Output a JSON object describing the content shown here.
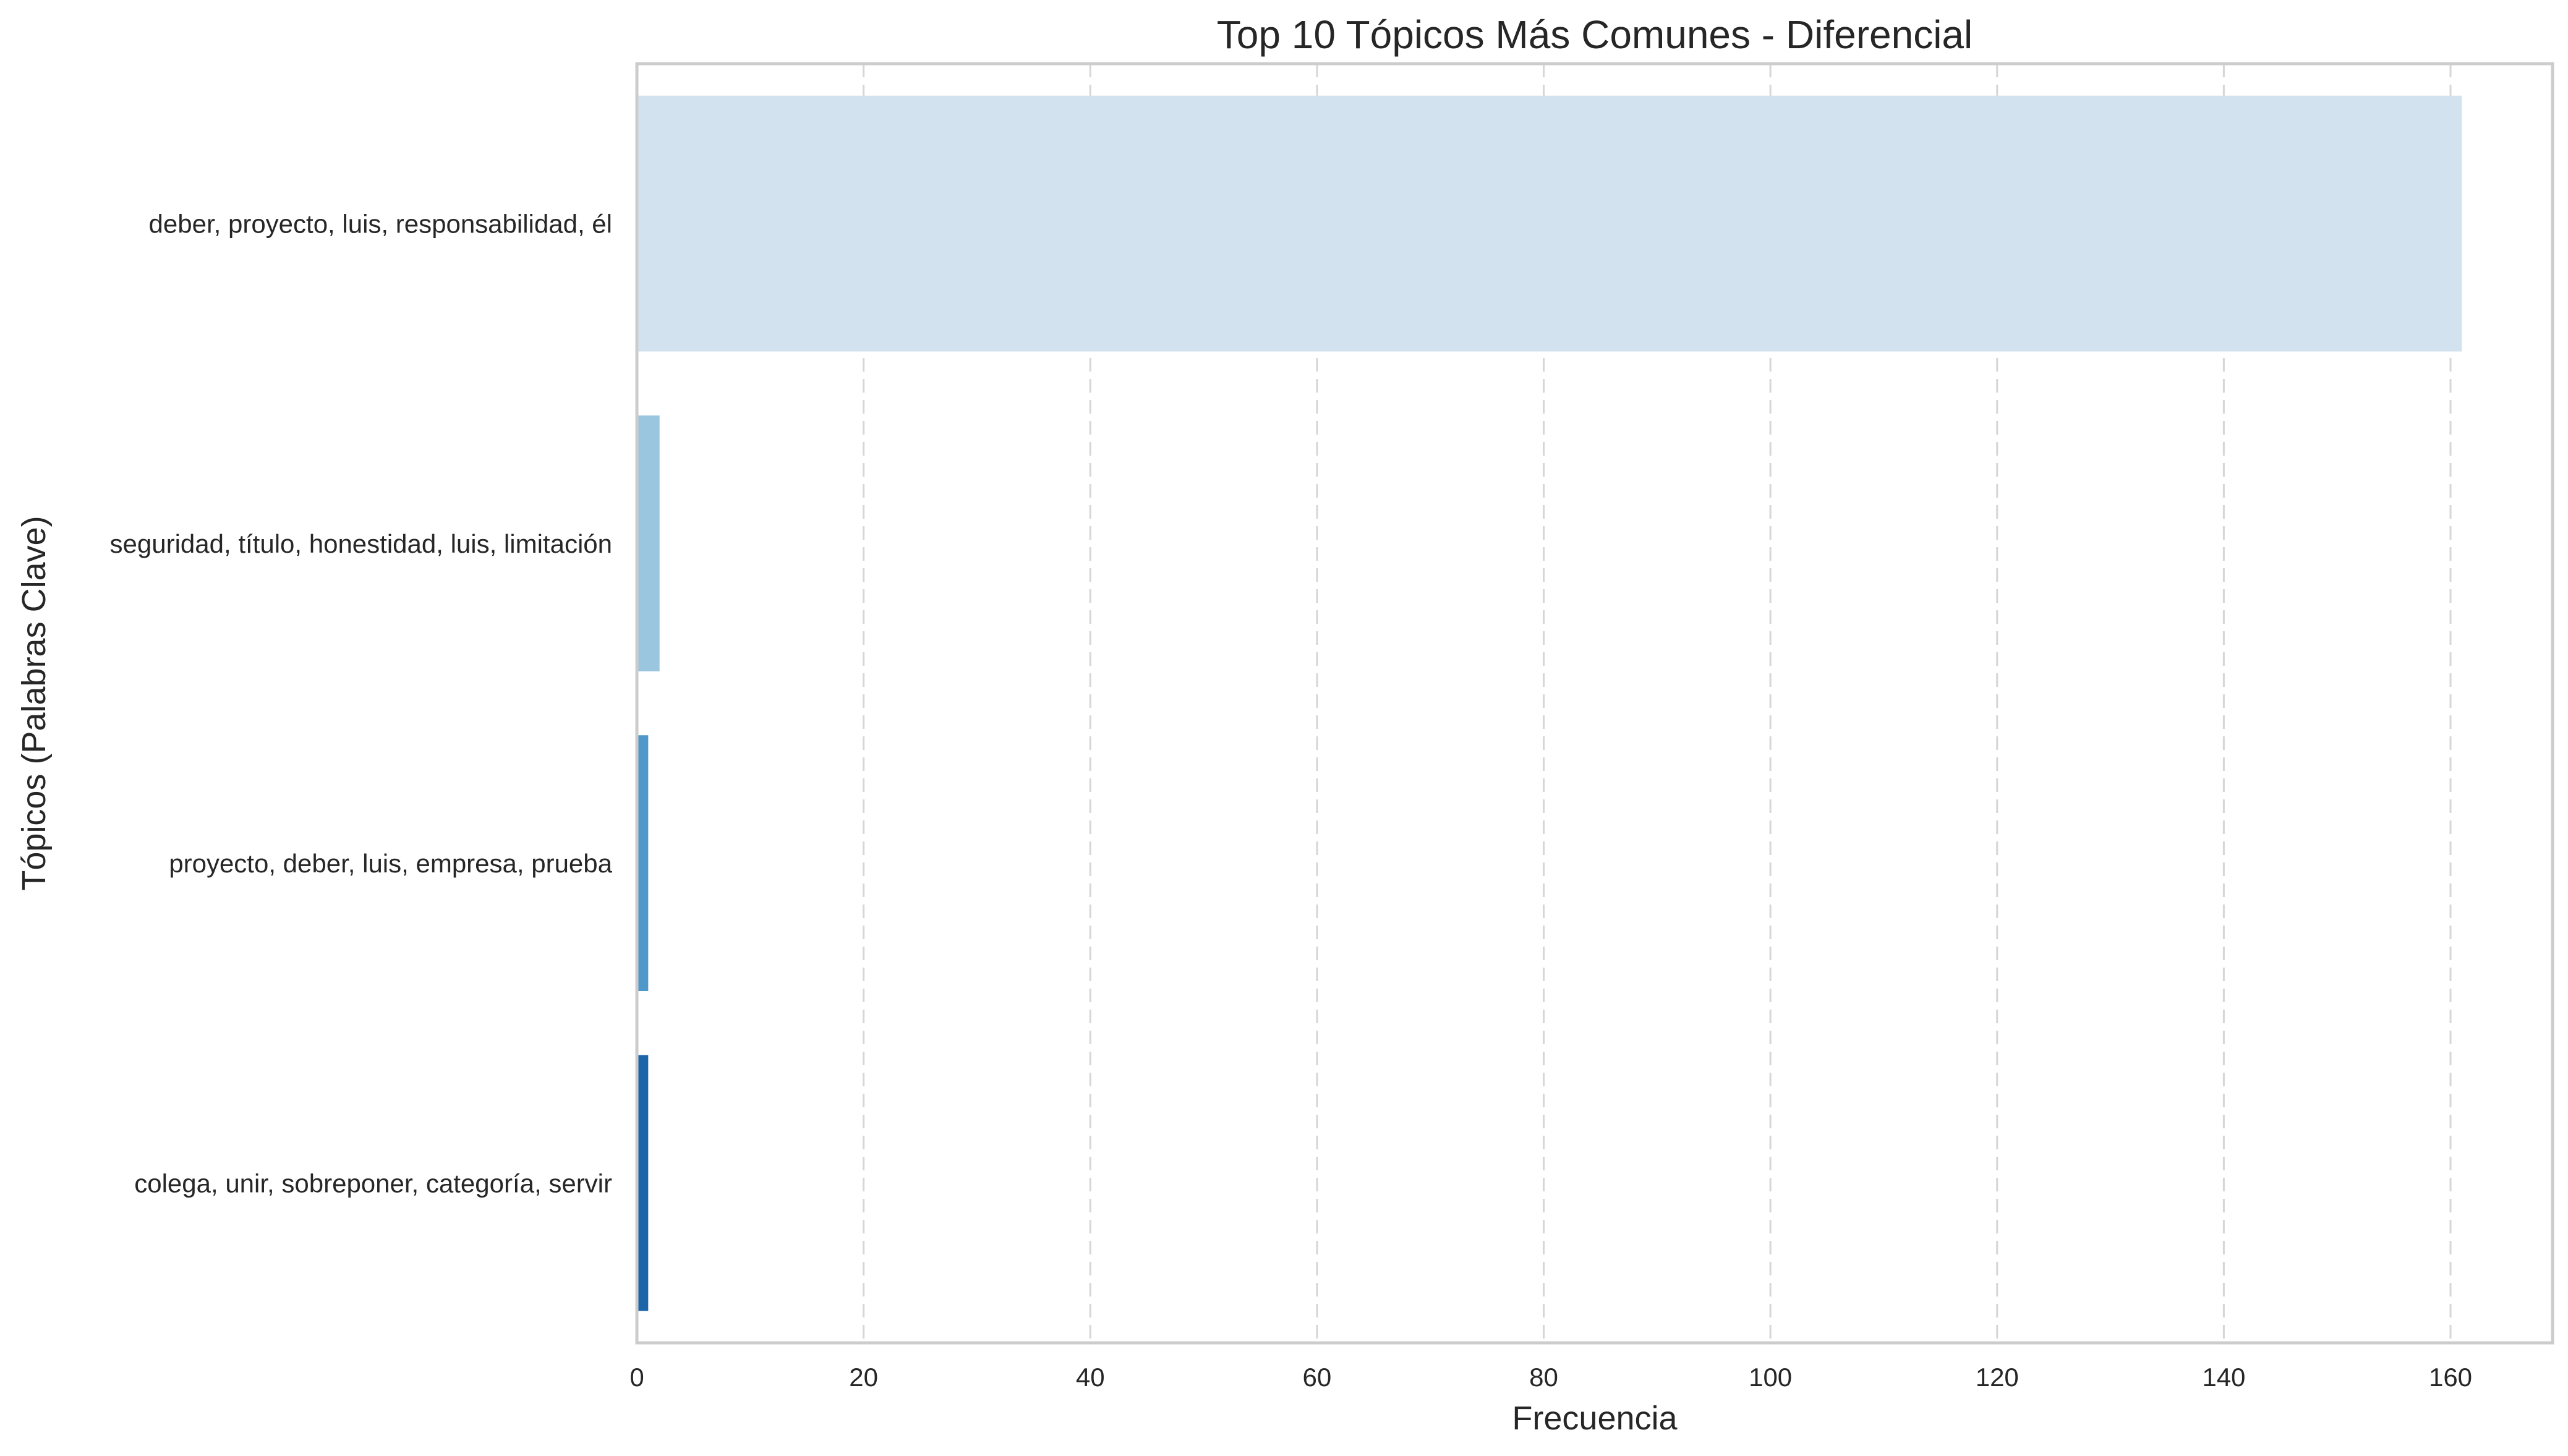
{
  "chart_data": {
    "type": "bar",
    "orientation": "horizontal",
    "title": "Top 10 Tópicos Más Comunes - Diferencial",
    "xlabel": "Frecuencia",
    "ylabel": "Tópicos (Palabras Clave)",
    "categories": [
      "deber, proyecto, luis, responsabilidad, él",
      "seguridad, título, honestidad, luis, limitación",
      "proyecto, deber, luis, empresa, prueba",
      "colega, unir, sobreponer, categoría, servir"
    ],
    "values": [
      161,
      2,
      1,
      1
    ],
    "bar_colors": [
      "#d3e2ef",
      "#9ac6df",
      "#4f98c9",
      "#1c65a8"
    ],
    "xlim": [
      0,
      169
    ],
    "xticks": [
      0,
      20,
      40,
      60,
      80,
      100,
      120,
      140,
      160
    ],
    "grid": "x-dashed",
    "legend": "none"
  }
}
